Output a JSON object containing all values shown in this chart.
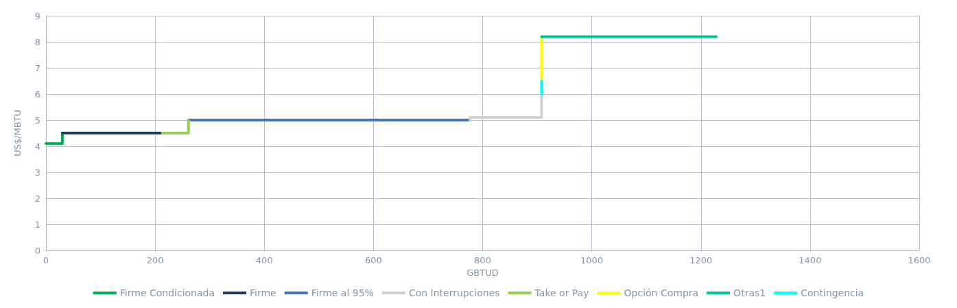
{
  "chart_data": {
    "type": "line",
    "xlabel": "GBTUD",
    "ylabel": "US$/MBTU",
    "xlim": [
      0,
      1600
    ],
    "xticks": [
      0,
      200,
      400,
      600,
      800,
      1000,
      1200,
      1400,
      1600
    ],
    "ylim": [
      0,
      9
    ],
    "yticks": [
      0,
      1,
      2,
      3,
      4,
      5,
      6,
      7,
      8,
      9
    ],
    "grid": true,
    "legend": "bottom",
    "marker": "none",
    "line_style": "solid",
    "series": [
      {
        "name": "Firme Condicionada",
        "color": "#00b050",
        "x": [
          0,
          30,
          30
        ],
        "values": [
          4.1,
          4.1,
          4.5
        ]
      },
      {
        "name": "Firme",
        "color": "#1f3864",
        "x": [
          30,
          213
        ],
        "values": [
          4.5,
          4.5
        ]
      },
      {
        "name": "Firme al 95%",
        "color": "#4472c4",
        "x": [
          261,
          777
        ],
        "values": [
          5.0,
          5.0
        ]
      },
      {
        "name": "Con Interrupciones",
        "color": "#d0cece",
        "x": [
          777,
          777,
          908,
          908
        ],
        "values": [
          5.0,
          5.1,
          5.1,
          6.0
        ]
      },
      {
        "name": "Take or Pay",
        "color": "#92d050",
        "x": [
          213,
          261,
          261
        ],
        "values": [
          4.5,
          4.5,
          5.0
        ]
      },
      {
        "name": "Opción Compra",
        "color": "#ffff00",
        "x": [
          908,
          908
        ],
        "values": [
          6.5,
          8.2
        ]
      },
      {
        "name": "Otras1",
        "color": "#00c88c",
        "x": [
          908,
          1228
        ],
        "values": [
          8.2,
          8.2
        ]
      },
      {
        "name": "Contingencia",
        "color": "#00ffff",
        "x": [
          908,
          908
        ],
        "values": [
          6.0,
          6.5
        ]
      }
    ]
  }
}
